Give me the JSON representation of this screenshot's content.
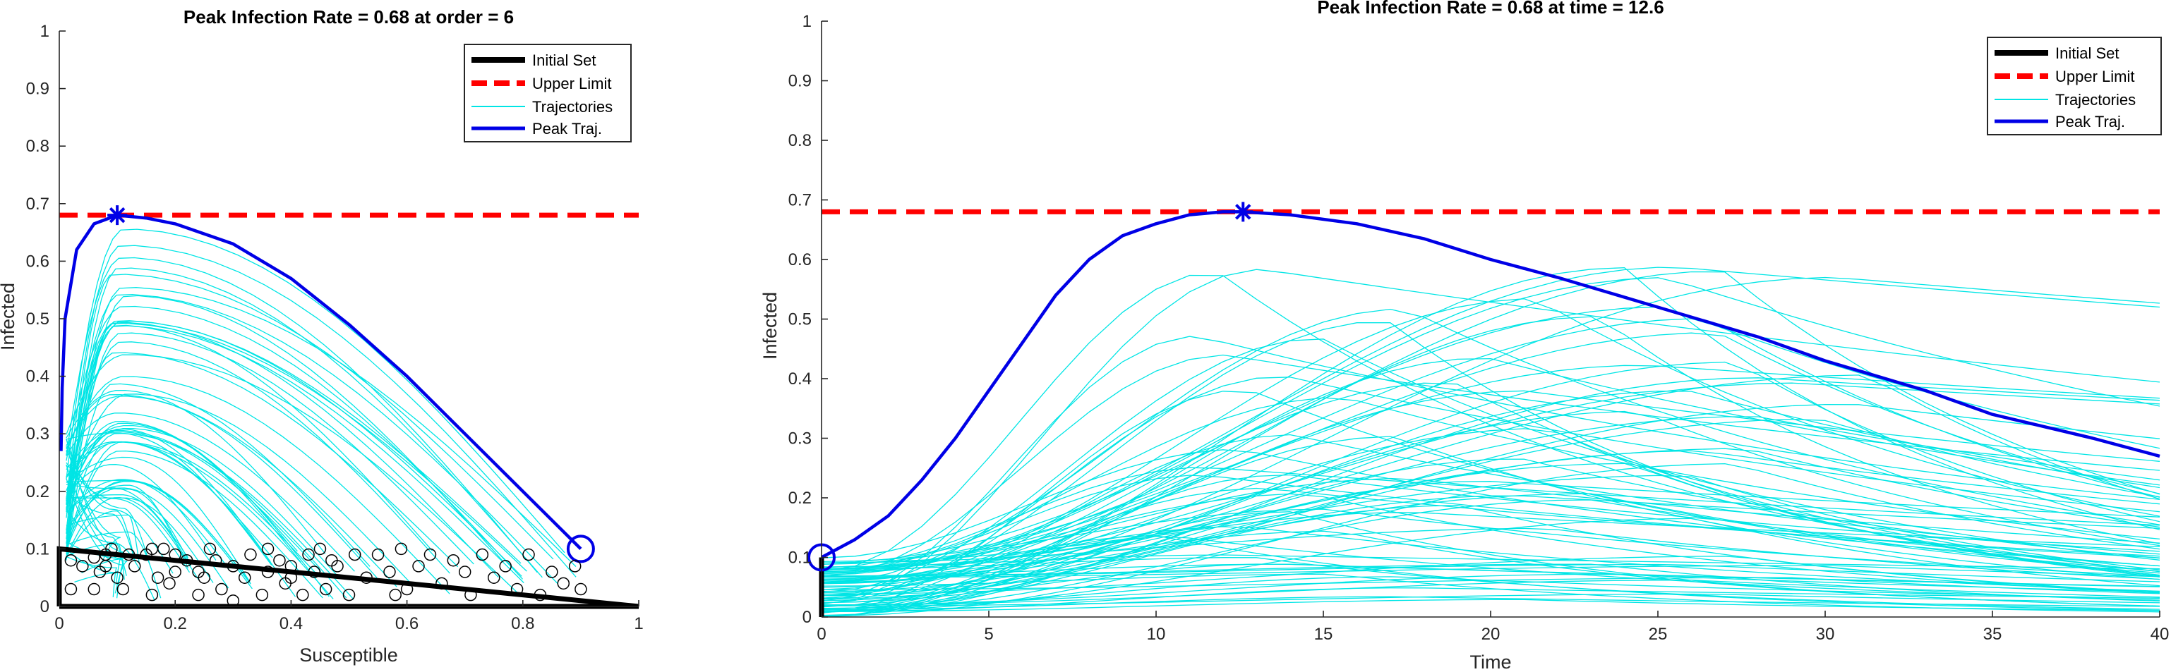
{
  "colors": {
    "initial_set": "#000000",
    "upper_limit": "#ff0000",
    "trajectories": "#00e5e5",
    "peak_traj": "#0000e6",
    "axes": "#262626"
  },
  "chart_data": [
    {
      "type": "line",
      "title": "Peak Infection Rate = 0.68 at order = 6",
      "xlabel": "Susceptible",
      "ylabel": "Infected",
      "xlim": [
        0,
        1
      ],
      "ylim": [
        0,
        1
      ],
      "xticks": [
        0,
        0.2,
        0.4,
        0.6,
        0.8,
        1
      ],
      "xtick_labels": [
        "0",
        "0.2",
        "0.4",
        "0.6",
        "0.8",
        "1"
      ],
      "yticks": [
        0,
        0.1,
        0.2,
        0.3,
        0.4,
        0.5,
        0.6,
        0.7,
        0.8,
        0.9,
        1
      ],
      "ytick_labels": [
        "0",
        "0.1",
        "0.2",
        "0.3",
        "0.4",
        "0.5",
        "0.6",
        "0.7",
        "0.8",
        "0.9",
        "1"
      ],
      "grid": false,
      "legend_location": "top-right",
      "legend": [
        "Initial Set",
        "Upper Limit",
        "Trajectories",
        "Peak Traj."
      ],
      "series": [
        {
          "name": "Initial Set",
          "x": [
            0,
            0.9,
            1,
            0,
            0
          ],
          "y": [
            0,
            0,
            0,
            0.1,
            0
          ]
        },
        {
          "name": "Upper Limit",
          "x": [
            0,
            1
          ],
          "y": [
            0.68,
            0.68
          ]
        },
        {
          "name": "Peak Traj.",
          "x": [
            0.9,
            0.8,
            0.7,
            0.6,
            0.5,
            0.4,
            0.3,
            0.2,
            0.15,
            0.1,
            0.06,
            0.03,
            0.01,
            0.005,
            0.003
          ],
          "y": [
            0.1,
            0.2,
            0.3,
            0.4,
            0.49,
            0.57,
            0.63,
            0.665,
            0.675,
            0.68,
            0.665,
            0.62,
            0.5,
            0.38,
            0.27
          ]
        }
      ],
      "peak_marker": {
        "x": 0.1,
        "y": 0.68
      },
      "start_marker": {
        "x": 0.9,
        "y": 0.1
      },
      "initial_points": [
        [
          0.02,
          0.08
        ],
        [
          0.02,
          0.03
        ],
        [
          0.04,
          0.07
        ],
        [
          0.06,
          0.085
        ],
        [
          0.06,
          0.03
        ],
        [
          0.07,
          0.06
        ],
        [
          0.08,
          0.09
        ],
        [
          0.08,
          0.07
        ],
        [
          0.09,
          0.1
        ],
        [
          0.1,
          0.05
        ],
        [
          0.11,
          0.03
        ],
        [
          0.13,
          0.07
        ],
        [
          0.15,
          0.09
        ],
        [
          0.16,
          0.1
        ],
        [
          0.17,
          0.05
        ],
        [
          0.18,
          0.1
        ],
        [
          0.19,
          0.04
        ],
        [
          0.2,
          0.09
        ],
        [
          0.2,
          0.06
        ],
        [
          0.22,
          0.08
        ],
        [
          0.24,
          0.02
        ],
        [
          0.25,
          0.05
        ],
        [
          0.26,
          0.1
        ],
        [
          0.27,
          0.08
        ],
        [
          0.28,
          0.03
        ],
        [
          0.3,
          0.07
        ],
        [
          0.3,
          0.01
        ],
        [
          0.32,
          0.05
        ],
        [
          0.33,
          0.09
        ],
        [
          0.35,
          0.02
        ],
        [
          0.36,
          0.06
        ],
        [
          0.38,
          0.08
        ],
        [
          0.39,
          0.04
        ],
        [
          0.4,
          0.07
        ],
        [
          0.4,
          0.05
        ],
        [
          0.42,
          0.02
        ],
        [
          0.43,
          0.09
        ],
        [
          0.44,
          0.06
        ],
        [
          0.45,
          0.1
        ],
        [
          0.46,
          0.03
        ],
        [
          0.48,
          0.07
        ],
        [
          0.5,
          0.02
        ],
        [
          0.51,
          0.09
        ],
        [
          0.53,
          0.05
        ],
        [
          0.55,
          0.09
        ],
        [
          0.57,
          0.06
        ],
        [
          0.59,
          0.1
        ],
        [
          0.6,
          0.03
        ],
        [
          0.62,
          0.07
        ],
        [
          0.64,
          0.09
        ],
        [
          0.66,
          0.04
        ],
        [
          0.68,
          0.08
        ],
        [
          0.7,
          0.06
        ],
        [
          0.71,
          0.02
        ],
        [
          0.73,
          0.09
        ],
        [
          0.75,
          0.05
        ],
        [
          0.77,
          0.07
        ],
        [
          0.79,
          0.03
        ],
        [
          0.81,
          0.09
        ],
        [
          0.83,
          0.02
        ],
        [
          0.85,
          0.06
        ],
        [
          0.87,
          0.04
        ],
        [
          0.89,
          0.07
        ],
        [
          0.9,
          0.03
        ],
        [
          0.12,
          0.09
        ],
        [
          0.36,
          0.1
        ],
        [
          0.24,
          0.06
        ],
        [
          0.58,
          0.02
        ],
        [
          0.16,
          0.02
        ],
        [
          0.47,
          0.08
        ]
      ]
    },
    {
      "type": "line",
      "title": "Peak Infection Rate = 0.68 at time = 12.6",
      "xlabel": "Time",
      "ylabel": "Infected",
      "xlim": [
        0,
        40
      ],
      "ylim": [
        0,
        1
      ],
      "xticks": [
        0,
        5,
        10,
        15,
        20,
        25,
        30,
        35,
        40
      ],
      "xtick_labels": [
        "0",
        "5",
        "10",
        "15",
        "20",
        "25",
        "30",
        "35",
        "40"
      ],
      "yticks": [
        0,
        0.1,
        0.2,
        0.3,
        0.4,
        0.5,
        0.6,
        0.7,
        0.8,
        0.9,
        1
      ],
      "ytick_labels": [
        "0",
        "0.1",
        "0.2",
        "0.3",
        "0.4",
        "0.5",
        "0.6",
        "0.7",
        "0.8",
        "0.9",
        "1"
      ],
      "grid": false,
      "legend_location": "top-right",
      "legend": [
        "Initial Set",
        "Upper Limit",
        "Trajectories",
        "Peak Traj."
      ],
      "series": [
        {
          "name": "Initial Set",
          "x": [
            0,
            0
          ],
          "y": [
            0,
            0.1
          ]
        },
        {
          "name": "Upper Limit",
          "x": [
            0,
            40
          ],
          "y": [
            0.68,
            0.68
          ]
        },
        {
          "name": "Peak Traj.",
          "x": [
            0,
            1,
            2,
            3,
            4,
            5,
            6,
            7,
            8,
            9,
            10,
            11,
            12,
            12.6,
            14,
            16,
            18,
            20,
            22,
            25,
            28,
            30,
            33,
            35,
            38,
            40
          ],
          "y": [
            0.1,
            0.13,
            0.17,
            0.23,
            0.3,
            0.38,
            0.46,
            0.54,
            0.6,
            0.64,
            0.66,
            0.675,
            0.68,
            0.68,
            0.675,
            0.66,
            0.635,
            0.6,
            0.57,
            0.52,
            0.47,
            0.43,
            0.38,
            0.34,
            0.3,
            0.27
          ]
        }
      ],
      "peak_marker": {
        "x": 12.6,
        "y": 0.68
      },
      "start_marker": {
        "x": 0,
        "y": 0.1
      }
    }
  ]
}
